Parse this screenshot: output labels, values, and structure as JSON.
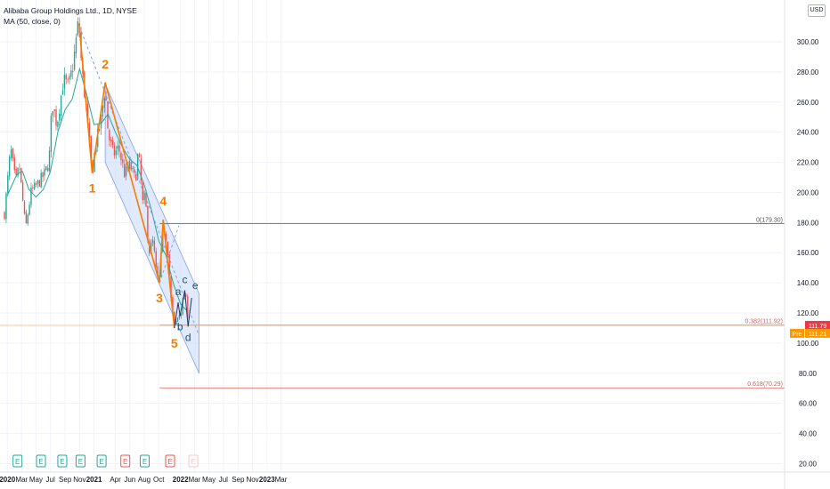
{
  "header": {
    "title": "Alibaba Group Holdings Ltd., 1D, NYSE",
    "indicator": "MA (50, close, 0)",
    "currency": "USD"
  },
  "colors": {
    "up": "#26a69a",
    "down": "#ef5350",
    "ma": "#26a69a",
    "wave": "#f57c00",
    "channel": "#c9d8fb",
    "fib_top": "#555555",
    "fib_red": "#ef5350",
    "last_price": "#f23645",
    "pre": "#ff9800"
  },
  "chart_data": {
    "type": "candlestick",
    "ylim": [
      15,
      325
    ],
    "yticks": [
      20,
      40,
      60,
      80,
      100,
      120,
      140,
      160,
      180,
      200,
      220,
      240,
      260,
      280,
      300
    ],
    "ytick_labels": [
      "20.00",
      "40.00",
      "60.00",
      "80.00",
      "100.00",
      "120.00",
      "140.00",
      "160.00",
      "180.00",
      "200.00",
      "220.00",
      "240.00",
      "260.00",
      "280.00",
      "300.00"
    ],
    "xticks": [
      "2020",
      "Mar",
      "May",
      "Jul",
      "Sep",
      "Nov",
      "2021",
      "Apr",
      "Jun",
      "Aug",
      "Oct",
      "2022",
      "Mar",
      "May",
      "Jul",
      "Sep",
      "Nov",
      "2023",
      "Mar"
    ],
    "price_path": [
      [
        "2019-12-20",
        186
      ],
      [
        "2020-01-15",
        229
      ],
      [
        "2020-02-05",
        206
      ],
      [
        "2020-02-20",
        218
      ],
      [
        "2020-03-18",
        176
      ],
      [
        "2020-04-10",
        200
      ],
      [
        "2020-05-05",
        205
      ],
      [
        "2020-06-05",
        212
      ],
      [
        "2020-06-25",
        220
      ],
      [
        "2020-07-08",
        260
      ],
      [
        "2020-07-28",
        245
      ],
      [
        "2020-08-25",
        275
      ],
      [
        "2020-09-15",
        270
      ],
      [
        "2020-10-05",
        285
      ],
      [
        "2020-10-28",
        315
      ],
      [
        "2020-11-10",
        282
      ],
      [
        "2020-11-25",
        262
      ],
      [
        "2020-12-24",
        213
      ],
      [
        "2021-01-08",
        232
      ],
      [
        "2021-01-28",
        245
      ],
      [
        "2021-02-17",
        270
      ],
      [
        "2021-03-02",
        238
      ],
      [
        "2021-03-25",
        225
      ],
      [
        "2021-04-15",
        230
      ],
      [
        "2021-05-10",
        212
      ],
      [
        "2021-06-01",
        218
      ],
      [
        "2021-06-25",
        208
      ],
      [
        "2021-07-07",
        228
      ],
      [
        "2021-07-26",
        192
      ],
      [
        "2021-08-05",
        198
      ],
      [
        "2021-08-20",
        160
      ],
      [
        "2021-09-07",
        168
      ],
      [
        "2021-09-24",
        142
      ],
      [
        "2021-10-05",
        144
      ],
      [
        "2021-10-20",
        178
      ],
      [
        "2021-11-05",
        168
      ],
      [
        "2021-11-22",
        129
      ],
      [
        "2021-12-06",
        111
      ],
      [
        "2021-12-20",
        117
      ],
      [
        "2022-01-05",
        122
      ],
      [
        "2022-01-20",
        135
      ],
      [
        "2022-02-03",
        115
      ]
    ],
    "ma50": [
      [
        "2020-01-01",
        198
      ],
      [
        "2020-02-10",
        212
      ],
      [
        "2020-03-05",
        214
      ],
      [
        "2020-04-01",
        202
      ],
      [
        "2020-05-01",
        197
      ],
      [
        "2020-06-01",
        202
      ],
      [
        "2020-07-01",
        214
      ],
      [
        "2020-08-01",
        240
      ],
      [
        "2020-09-01",
        255
      ],
      [
        "2020-10-01",
        262
      ],
      [
        "2020-11-01",
        282
      ],
      [
        "2020-12-01",
        265
      ],
      [
        "2021-01-01",
        245
      ],
      [
        "2021-02-01",
        246
      ],
      [
        "2021-03-01",
        252
      ],
      [
        "2021-04-01",
        240
      ],
      [
        "2021-05-01",
        230
      ],
      [
        "2021-06-01",
        222
      ],
      [
        "2021-07-01",
        218
      ],
      [
        "2021-08-01",
        205
      ],
      [
        "2021-09-01",
        188
      ],
      [
        "2021-10-01",
        168
      ],
      [
        "2021-11-01",
        158
      ],
      [
        "2021-12-01",
        140
      ],
      [
        "2022-01-01",
        126
      ],
      [
        "2022-01-25",
        122
      ]
    ],
    "elliott_main": [
      {
        "label": "",
        "date": "2020-10-30",
        "value": 312
      },
      {
        "label": "1",
        "date": "2020-12-24",
        "value": 213
      },
      {
        "label": "2",
        "date": "2021-02-17",
        "value": 273
      },
      {
        "label": "3",
        "date": "2021-10-04",
        "value": 140
      },
      {
        "label": "4",
        "date": "2021-10-20",
        "value": 182
      },
      {
        "label": "5",
        "date": "2021-12-06",
        "value": 110
      }
    ],
    "elliott_correction": [
      {
        "label": "",
        "date": "2021-12-06",
        "value": 110
      },
      {
        "label": "a",
        "date": "2021-12-22",
        "value": 127
      },
      {
        "label": "b",
        "date": "2021-12-30",
        "value": 118
      },
      {
        "label": "c",
        "date": "2022-01-19",
        "value": 135
      },
      {
        "label": "d",
        "date": "2022-02-02",
        "value": 111
      },
      {
        "label": "e",
        "date": "2022-02-17",
        "value": 130
      }
    ],
    "channel": [
      [
        "2021-02-17",
        272
      ],
      [
        "2022-03-20",
        133
      ],
      [
        "2022-03-20",
        80
      ],
      [
        "2021-02-17",
        220
      ]
    ],
    "trend_dashed": [
      [
        "2020-11-01",
        310
      ],
      [
        "2022-03-20",
        105
      ]
    ],
    "trend_dashed_2": [
      [
        "2021-10-05",
        140
      ],
      [
        "2021-12-25",
        178
      ]
    ],
    "fib_levels": [
      {
        "label": "0(179.30)",
        "value": 179.3,
        "color": "fib_top"
      },
      {
        "label": "0.382(111.92)",
        "value": 111.92,
        "color": "fib_red"
      },
      {
        "label": "0.618(70.29)",
        "value": 70.29,
        "color": "fib_red"
      }
    ],
    "last_price": {
      "value": 111.79,
      "label": "111.79"
    },
    "pre_price": {
      "tag": "Pre",
      "value": 111.21,
      "label": "111.21"
    },
    "earnings": [
      {
        "date": "2020-02-13",
        "type": "E",
        "sentiment": "up"
      },
      {
        "date": "2020-05-22",
        "type": "E",
        "sentiment": "up"
      },
      {
        "date": "2020-08-20",
        "type": "E",
        "sentiment": "up"
      },
      {
        "date": "2020-11-05",
        "type": "E",
        "sentiment": "up"
      },
      {
        "date": "2021-02-02",
        "type": "E",
        "sentiment": "up"
      },
      {
        "date": "2021-05-13",
        "type": "E",
        "sentiment": "down"
      },
      {
        "date": "2021-08-03",
        "type": "E",
        "sentiment": "up"
      },
      {
        "date": "2021-11-18",
        "type": "E",
        "sentiment": "down"
      },
      {
        "date": "2022-02-24",
        "type": "E",
        "sentiment": "future"
      }
    ]
  }
}
